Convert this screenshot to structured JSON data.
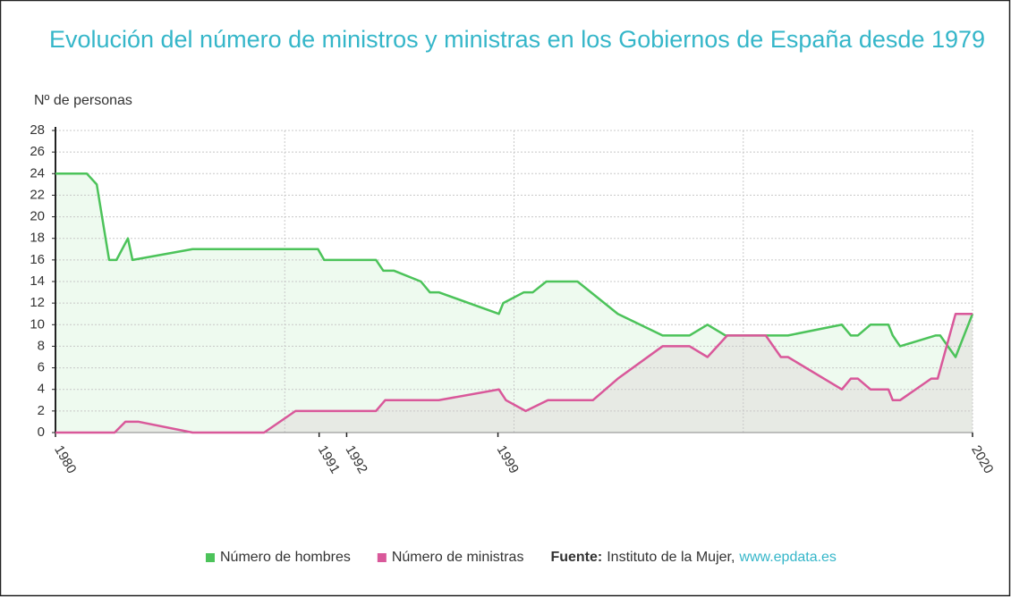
{
  "chart_data": {
    "type": "line",
    "title": "Evolución del número de ministros y ministras en los Gobiernos de España desde 1979",
    "y_label": "Nº de personas",
    "xlim": [
      1980,
      2020
    ],
    "xticks": [
      {
        "value": 1980,
        "label": "1980"
      },
      {
        "value": 1991.5,
        "label": "1991"
      },
      {
        "value": 1992.7,
        "label": "1992"
      },
      {
        "value": 1999.3,
        "label": "1999"
      },
      {
        "value": 2020,
        "label": "2020"
      }
    ],
    "xgrid": [
      1990,
      2000,
      2010,
      2020
    ],
    "ylim": [
      0,
      28
    ],
    "yticks": [
      0,
      2,
      4,
      6,
      8,
      10,
      12,
      14,
      16,
      18,
      20,
      22,
      24,
      26,
      28
    ],
    "grid": true,
    "series": [
      {
        "name": "Número de hombres",
        "color": "#4cc35a",
        "fill": "#eefaef",
        "x": [
          1980,
          1981.37,
          1981.8,
          1982.34,
          1982.66,
          1983.16,
          1983.36,
          1985.98,
          1991.45,
          1991.72,
          1993.98,
          1994.3,
          1994.77,
          1995.94,
          1996.33,
          1996.72,
          1999.34,
          1999.53,
          2000.43,
          2000.82,
          2001.41,
          2002.77,
          2004.53,
          2006.48,
          2007.66,
          2008.44,
          2009.22,
          2011.95,
          2014.3,
          2014.69,
          2015,
          2015.55,
          2016.33,
          2016.52,
          2016.84,
          2018.4,
          2018.59,
          2019.26,
          2020
        ],
        "values": [
          24,
          24,
          23,
          16,
          16,
          18,
          16,
          17,
          17,
          16,
          16,
          15,
          15,
          14,
          13,
          13,
          11,
          12,
          13,
          13,
          14,
          14,
          11,
          9,
          9,
          10,
          9,
          9,
          10,
          9,
          9,
          10,
          10,
          9,
          8,
          9,
          9,
          7,
          11
        ]
      },
      {
        "name": "Número de ministras",
        "color": "#d9589a",
        "fill": "#e4e4e0",
        "x": [
          1980,
          1982.58,
          1983.05,
          1983.63,
          1985.98,
          1989.1,
          1990.47,
          1993.98,
          1994.38,
          1996.72,
          1999.34,
          1999.65,
          2000.51,
          2001.48,
          2003.44,
          2004.53,
          2006.48,
          2007.66,
          2008.44,
          2009.3,
          2010.98,
          2011.64,
          2011.95,
          2014.3,
          2014.69,
          2015,
          2015.55,
          2016.33,
          2016.52,
          2016.84,
          2018.2,
          2018.48,
          2019.26,
          2020
        ],
        "values": [
          0,
          0,
          1,
          1,
          0,
          0,
          2,
          2,
          3,
          3,
          4,
          3,
          2,
          3,
          3,
          5,
          8,
          8,
          7,
          9,
          9,
          7,
          7,
          4,
          5,
          5,
          4,
          4,
          3,
          3,
          5,
          5,
          11,
          11
        ]
      }
    ],
    "source": {
      "label": "Fuente:",
      "text": "Instituto de la Mujer,",
      "link": "www.epdata.es"
    }
  }
}
